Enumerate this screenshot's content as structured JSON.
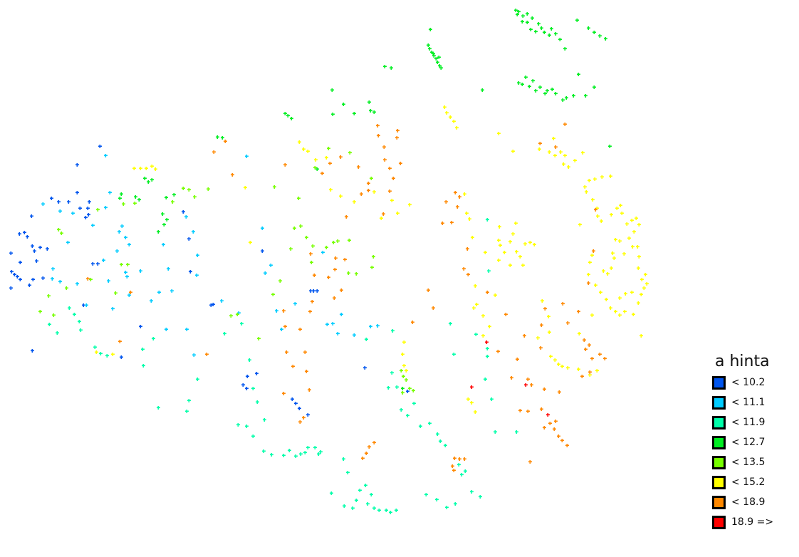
{
  "legend": {
    "title": "a hinta",
    "classes": [
      {
        "label": "< 10.2",
        "color": "#0055ee"
      },
      {
        "label": "< 11.1",
        "color": "#00ccff"
      },
      {
        "label": "< 11.9",
        "color": "#00ffaa"
      },
      {
        "label": "< 12.7",
        "color": "#00ee22"
      },
      {
        "label": "< 13.5",
        "color": "#77ff00"
      },
      {
        "label": "< 15.2",
        "color": "#ffff00"
      },
      {
        "label": "< 18.9",
        "color": "#ff8800"
      },
      {
        "label": "18.9 =>",
        "color": "#ff0000"
      }
    ]
  },
  "point_style": {
    "marker": "plus",
    "count_shown": "many"
  }
}
